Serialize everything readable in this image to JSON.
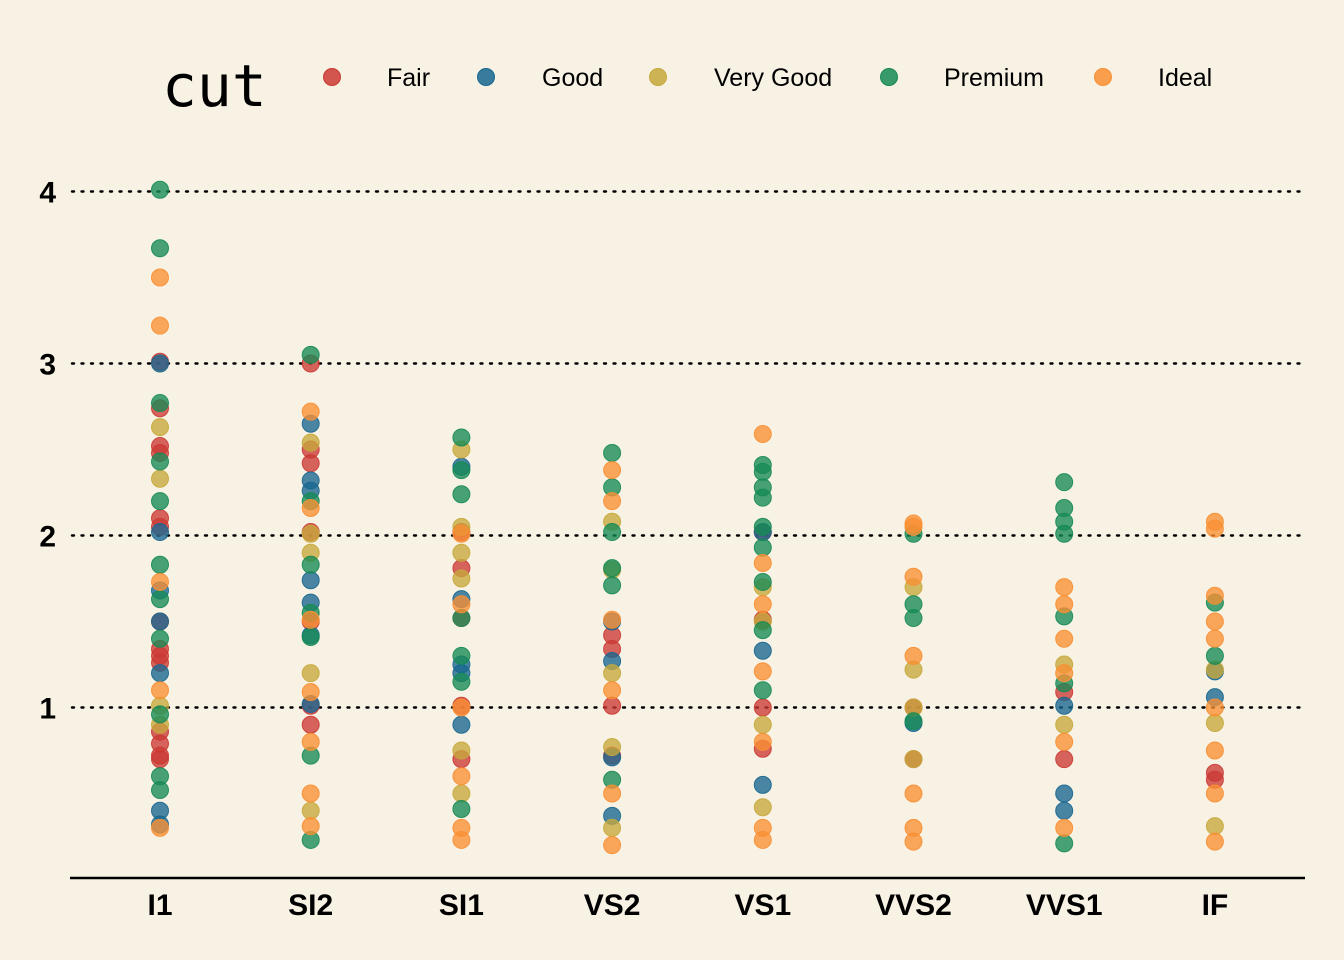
{
  "chart_data": {
    "type": "scatter",
    "legend_title": "cut",
    "legend_position": "top",
    "xlabel": "",
    "ylabel": "",
    "categories": [
      "I1",
      "SI2",
      "SI1",
      "VS2",
      "VS1",
      "VVS2",
      "VVS1",
      "IF"
    ],
    "yticks": [
      1,
      2,
      3,
      4
    ],
    "ylim": [
      0.2,
      4.0
    ],
    "grid": "horizontal dotted",
    "series": [
      {
        "name": "Fair",
        "color": "#cb3a34",
        "points": [
          [
            "I1",
            2.74
          ],
          [
            "I1",
            2.52
          ],
          [
            "I1",
            2.48
          ],
          [
            "I1",
            2.1
          ],
          [
            "I1",
            2.05
          ],
          [
            "I1",
            1.5
          ],
          [
            "I1",
            1.34
          ],
          [
            "I1",
            1.3
          ],
          [
            "I1",
            1.26
          ],
          [
            "I1",
            0.86
          ],
          [
            "I1",
            0.79
          ],
          [
            "I1",
            0.72
          ],
          [
            "I1",
            0.7
          ],
          [
            "I1",
            3.01
          ],
          [
            "SI2",
            3.0
          ],
          [
            "SI2",
            2.5
          ],
          [
            "SI2",
            2.42
          ],
          [
            "SI2",
            2.02
          ],
          [
            "SI2",
            1.5
          ],
          [
            "SI2",
            1.01
          ],
          [
            "SI2",
            0.9
          ],
          [
            "SI1",
            2.02
          ],
          [
            "SI1",
            1.81
          ],
          [
            "SI1",
            1.52
          ],
          [
            "SI1",
            1.01
          ],
          [
            "SI1",
            0.7
          ],
          [
            "VS2",
            1.42
          ],
          [
            "VS2",
            1.34
          ],
          [
            "VS2",
            1.01
          ],
          [
            "VS2",
            0.72
          ],
          [
            "VS1",
            2.02
          ],
          [
            "VS1",
            1.51
          ],
          [
            "VS1",
            1.0
          ],
          [
            "VS1",
            0.76
          ],
          [
            "VVS2",
            1.0
          ],
          [
            "VVS2",
            0.7
          ],
          [
            "VVS1",
            1.09
          ],
          [
            "VVS1",
            0.7
          ],
          [
            "IF",
            0.62
          ],
          [
            "IF",
            0.58
          ]
        ]
      },
      {
        "name": "Good",
        "color": "#17668f",
        "points": [
          [
            "I1",
            3.0
          ],
          [
            "I1",
            2.02
          ],
          [
            "I1",
            1.68
          ],
          [
            "I1",
            1.5
          ],
          [
            "I1",
            1.2
          ],
          [
            "I1",
            0.4
          ],
          [
            "I1",
            0.32
          ],
          [
            "SI2",
            2.65
          ],
          [
            "SI2",
            2.32
          ],
          [
            "SI2",
            2.26
          ],
          [
            "SI2",
            1.74
          ],
          [
            "SI2",
            1.61
          ],
          [
            "SI2",
            1.42
          ],
          [
            "SI2",
            1.02
          ],
          [
            "SI1",
            2.4
          ],
          [
            "SI1",
            1.63
          ],
          [
            "SI1",
            1.25
          ],
          [
            "SI1",
            1.2
          ],
          [
            "SI1",
            0.9
          ],
          [
            "VS2",
            1.5
          ],
          [
            "VS2",
            1.27
          ],
          [
            "VS2",
            0.71
          ],
          [
            "VS2",
            0.37
          ],
          [
            "VS1",
            2.02
          ],
          [
            "VS1",
            1.33
          ],
          [
            "VS1",
            0.55
          ],
          [
            "VVS2",
            0.91
          ],
          [
            "VVS1",
            1.01
          ],
          [
            "VVS1",
            0.5
          ],
          [
            "VVS1",
            0.4
          ],
          [
            "IF",
            1.21
          ],
          [
            "IF",
            1.06
          ]
        ]
      },
      {
        "name": "Very Good",
        "color": "#c6a83b",
        "points": [
          [
            "I1",
            2.63
          ],
          [
            "I1",
            2.33
          ],
          [
            "I1",
            1.01
          ],
          [
            "I1",
            0.9
          ],
          [
            "SI2",
            2.54
          ],
          [
            "SI2",
            2.01
          ],
          [
            "SI2",
            1.9
          ],
          [
            "SI2",
            1.2
          ],
          [
            "SI2",
            0.4
          ],
          [
            "SI1",
            2.5
          ],
          [
            "SI1",
            2.05
          ],
          [
            "SI1",
            1.9
          ],
          [
            "SI1",
            1.75
          ],
          [
            "SI1",
            0.75
          ],
          [
            "SI1",
            0.5
          ],
          [
            "VS2",
            2.08
          ],
          [
            "VS2",
            1.8
          ],
          [
            "VS2",
            1.2
          ],
          [
            "VS2",
            0.77
          ],
          [
            "VS2",
            0.3
          ],
          [
            "VS1",
            1.7
          ],
          [
            "VS1",
            1.5
          ],
          [
            "VS1",
            0.9
          ],
          [
            "VS1",
            0.42
          ],
          [
            "VVS2",
            1.7
          ],
          [
            "VVS2",
            1.22
          ],
          [
            "VVS2",
            1.0
          ],
          [
            "VVS2",
            0.7
          ],
          [
            "VVS1",
            1.25
          ],
          [
            "VVS1",
            0.9
          ],
          [
            "IF",
            1.22
          ],
          [
            "IF",
            0.91
          ],
          [
            "IF",
            0.31
          ]
        ]
      },
      {
        "name": "Premium",
        "color": "#168a55",
        "points": [
          [
            "I1",
            4.01
          ],
          [
            "I1",
            3.67
          ],
          [
            "I1",
            2.77
          ],
          [
            "I1",
            2.43
          ],
          [
            "I1",
            2.2
          ],
          [
            "I1",
            1.83
          ],
          [
            "I1",
            1.63
          ],
          [
            "I1",
            1.4
          ],
          [
            "I1",
            0.96
          ],
          [
            "I1",
            0.6
          ],
          [
            "I1",
            0.52
          ],
          [
            "SI2",
            3.05
          ],
          [
            "SI2",
            2.2
          ],
          [
            "SI2",
            1.83
          ],
          [
            "SI2",
            1.55
          ],
          [
            "SI2",
            1.41
          ],
          [
            "SI2",
            0.72
          ],
          [
            "SI2",
            0.23
          ],
          [
            "SI1",
            2.57
          ],
          [
            "SI1",
            2.38
          ],
          [
            "SI1",
            2.24
          ],
          [
            "SI1",
            1.52
          ],
          [
            "SI1",
            1.3
          ],
          [
            "SI1",
            1.15
          ],
          [
            "SI1",
            0.41
          ],
          [
            "VS2",
            2.48
          ],
          [
            "VS2",
            2.28
          ],
          [
            "VS2",
            2.02
          ],
          [
            "VS2",
            1.81
          ],
          [
            "VS2",
            1.71
          ],
          [
            "VS2",
            0.58
          ],
          [
            "VS1",
            2.41
          ],
          [
            "VS1",
            2.37
          ],
          [
            "VS1",
            2.28
          ],
          [
            "VS1",
            2.22
          ],
          [
            "VS1",
            2.05
          ],
          [
            "VS1",
            1.93
          ],
          [
            "VS1",
            1.73
          ],
          [
            "VS1",
            1.45
          ],
          [
            "VS1",
            1.1
          ],
          [
            "VVS2",
            2.01
          ],
          [
            "VVS2",
            1.6
          ],
          [
            "VVS2",
            1.52
          ],
          [
            "VVS2",
            0.92
          ],
          [
            "VVS1",
            2.31
          ],
          [
            "VVS1",
            2.16
          ],
          [
            "VVS1",
            2.08
          ],
          [
            "VVS1",
            2.01
          ],
          [
            "VVS1",
            1.53
          ],
          [
            "VVS1",
            1.14
          ],
          [
            "VVS1",
            0.21
          ],
          [
            "IF",
            1.61
          ],
          [
            "IF",
            1.3
          ]
        ]
      },
      {
        "name": "Ideal",
        "color": "#f88f33",
        "points": [
          [
            "I1",
            3.5
          ],
          [
            "I1",
            3.22
          ],
          [
            "I1",
            1.73
          ],
          [
            "I1",
            1.1
          ],
          [
            "I1",
            0.3
          ],
          [
            "SI2",
            2.72
          ],
          [
            "SI2",
            2.16
          ],
          [
            "SI2",
            1.51
          ],
          [
            "SI2",
            1.09
          ],
          [
            "SI2",
            0.8
          ],
          [
            "SI2",
            0.5
          ],
          [
            "SI2",
            0.31
          ],
          [
            "SI1",
            2.01
          ],
          [
            "SI1",
            1.6
          ],
          [
            "SI1",
            1.0
          ],
          [
            "SI1",
            0.6
          ],
          [
            "SI1",
            0.3
          ],
          [
            "SI1",
            0.23
          ],
          [
            "VS2",
            2.38
          ],
          [
            "VS2",
            2.2
          ],
          [
            "VS2",
            1.51
          ],
          [
            "VS2",
            1.1
          ],
          [
            "VS2",
            0.5
          ],
          [
            "VS2",
            0.2
          ],
          [
            "VS1",
            2.59
          ],
          [
            "VS1",
            1.84
          ],
          [
            "VS1",
            1.6
          ],
          [
            "VS1",
            1.21
          ],
          [
            "VS1",
            0.8
          ],
          [
            "VS1",
            0.3
          ],
          [
            "VS1",
            0.23
          ],
          [
            "VVS2",
            2.07
          ],
          [
            "VVS2",
            2.05
          ],
          [
            "VVS2",
            1.76
          ],
          [
            "VVS2",
            1.3
          ],
          [
            "VVS2",
            0.5
          ],
          [
            "VVS2",
            0.3
          ],
          [
            "VVS2",
            0.22
          ],
          [
            "VVS1",
            1.7
          ],
          [
            "VVS1",
            1.6
          ],
          [
            "VVS1",
            1.4
          ],
          [
            "VVS1",
            1.2
          ],
          [
            "VVS1",
            0.8
          ],
          [
            "VVS1",
            0.3
          ],
          [
            "IF",
            2.08
          ],
          [
            "IF",
            2.04
          ],
          [
            "IF",
            1.65
          ],
          [
            "IF",
            1.5
          ],
          [
            "IF",
            1.4
          ],
          [
            "IF",
            1.0
          ],
          [
            "IF",
            0.75
          ],
          [
            "IF",
            0.5
          ],
          [
            "IF",
            0.22
          ]
        ]
      }
    ]
  }
}
